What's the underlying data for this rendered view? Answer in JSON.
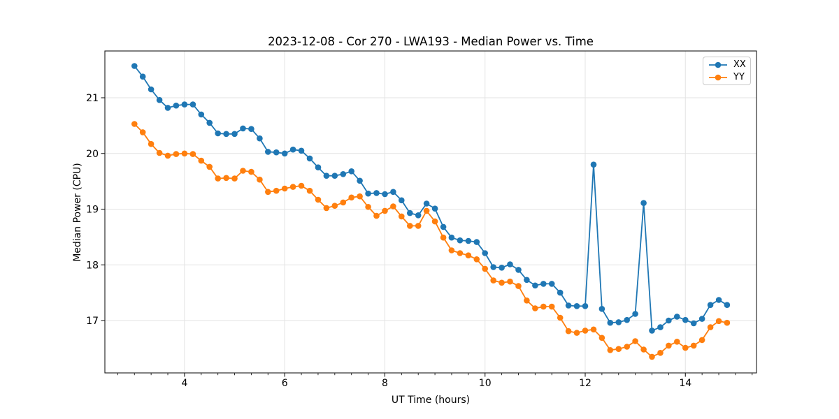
{
  "chart_data": {
    "type": "line",
    "title": "2023-12-08 - Cor 270 - LWA193 - Median Power vs. Time",
    "xlabel": "UT Time (hours)",
    "ylabel": "Median Power (CPU)",
    "xlim": [
      2.41,
      15.42
    ],
    "ylim": [
      16.06,
      21.84
    ],
    "xticks": [
      4,
      6,
      8,
      10,
      12,
      14
    ],
    "yticks": [
      17,
      18,
      19,
      20,
      21
    ],
    "x_minor_tick_step_hours": 0.333,
    "grid": true,
    "legend_position": "upper right",
    "marker": "circle",
    "x": [
      3.0,
      3.167,
      3.333,
      3.5,
      3.667,
      3.833,
      4.0,
      4.167,
      4.333,
      4.5,
      4.667,
      4.833,
      5.0,
      5.167,
      5.333,
      5.5,
      5.667,
      5.833,
      6.0,
      6.167,
      6.333,
      6.5,
      6.667,
      6.833,
      7.0,
      7.167,
      7.333,
      7.5,
      7.667,
      7.833,
      8.0,
      8.167,
      8.333,
      8.5,
      8.667,
      8.833,
      9.0,
      9.167,
      9.333,
      9.5,
      9.667,
      9.833,
      10.0,
      10.167,
      10.333,
      10.5,
      10.667,
      10.833,
      11.0,
      11.167,
      11.333,
      11.5,
      11.667,
      11.833,
      12.0,
      12.167,
      12.333,
      12.5,
      12.667,
      12.833,
      13.0,
      13.167,
      13.333,
      13.5,
      13.667,
      13.833,
      14.0,
      14.167,
      14.333,
      14.5,
      14.667,
      14.833
    ],
    "series": [
      {
        "name": "XX",
        "color": "#1f77b4",
        "values": [
          21.57,
          21.38,
          21.15,
          20.96,
          20.82,
          20.86,
          20.88,
          20.88,
          20.7,
          20.55,
          20.36,
          20.35,
          20.35,
          20.45,
          20.44,
          20.27,
          20.03,
          20.02,
          20.0,
          20.07,
          20.05,
          19.91,
          19.75,
          19.6,
          19.6,
          19.63,
          19.68,
          19.51,
          19.28,
          19.29,
          19.27,
          19.31,
          19.16,
          18.93,
          18.89,
          19.1,
          19.01,
          18.68,
          18.49,
          18.44,
          18.43,
          18.41,
          18.21,
          17.96,
          17.95,
          18.01,
          17.91,
          17.73,
          17.63,
          17.66,
          17.66,
          17.5,
          17.27,
          17.26,
          17.26,
          19.8,
          17.21,
          16.96,
          16.97,
          17.01,
          17.12,
          19.11,
          16.82,
          16.88,
          17.0,
          17.07,
          17.01,
          16.95,
          17.03,
          17.28,
          17.37,
          17.28
        ]
      },
      {
        "name": "YY",
        "color": "#ff7f0e",
        "values": [
          20.53,
          20.38,
          20.17,
          20.01,
          19.96,
          19.99,
          20.0,
          19.99,
          19.87,
          19.76,
          19.55,
          19.56,
          19.55,
          19.69,
          19.67,
          19.53,
          19.31,
          19.33,
          19.37,
          19.4,
          19.42,
          19.33,
          19.17,
          19.02,
          19.06,
          19.12,
          19.21,
          19.23,
          19.04,
          18.88,
          18.97,
          19.05,
          18.87,
          18.7,
          18.7,
          18.97,
          18.78,
          18.49,
          18.26,
          18.21,
          18.17,
          18.1,
          17.93,
          17.72,
          17.68,
          17.7,
          17.62,
          17.36,
          17.22,
          17.25,
          17.25,
          17.05,
          16.81,
          16.78,
          16.82,
          16.84,
          16.69,
          16.47,
          16.49,
          16.53,
          16.63,
          16.48,
          16.35,
          16.42,
          16.55,
          16.62,
          16.51,
          16.55,
          16.65,
          16.88,
          16.99,
          16.96
        ]
      }
    ]
  }
}
